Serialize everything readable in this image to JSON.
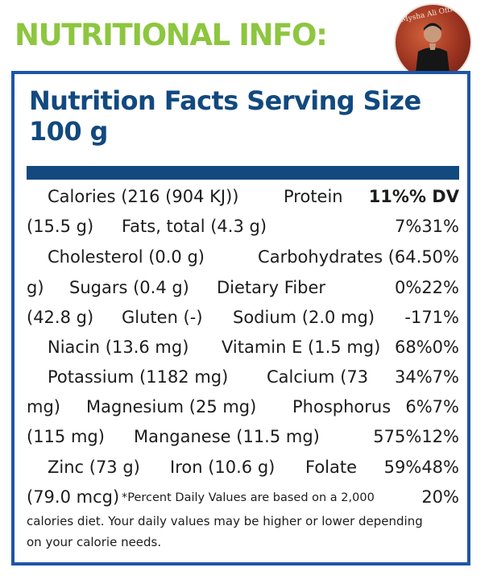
{
  "heading": "NUTRITIONAL INFO:",
  "avatar": {
    "stamp": "Mysha Ali Official"
  },
  "panel": {
    "title": "Nutrition Facts Serving Size 100 g",
    "rows": [
      [
        "Calories (216 (904 KJ))",
        "Protein",
        "11%% DV"
      ],
      [
        "(15.5 g)",
        "Fats, total (4.3 g)",
        "7%31%"
      ],
      [
        "Cholesterol (0.0 g)",
        "Carbohydrates (64.50%",
        ""
      ],
      [
        "g)",
        "Sugars (0.4 g)",
        "Dietary Fiber",
        "0%22%"
      ],
      [
        "(42.8 g)",
        "Gluten (-)",
        "Sodium (2.0 mg)",
        "-171%"
      ],
      [
        "Niacin (13.6 mg)",
        "Vitamin E (1.5 mg)",
        "68%0%"
      ],
      [
        "Potassium (1182 mg)",
        "Calcium (73",
        "34%7%"
      ],
      [
        "mg)",
        "Magnesium (25 mg)",
        "Phosphorus",
        "6%7%"
      ],
      [
        "(115 mg)",
        "Manganese (11.5 mg)",
        "575%12%"
      ],
      [
        "Zinc (73 g)",
        "Iron (10.6 g)",
        "Folate",
        "59%48%"
      ]
    ],
    "last_row": [
      "(79.0 mcg)",
      "*Percent Daily Values are based on a 2,000",
      "20%"
    ],
    "footnote_lines": [
      "calories diet. Your daily values may be higher or lower depending",
      "on your calorie needs."
    ]
  }
}
